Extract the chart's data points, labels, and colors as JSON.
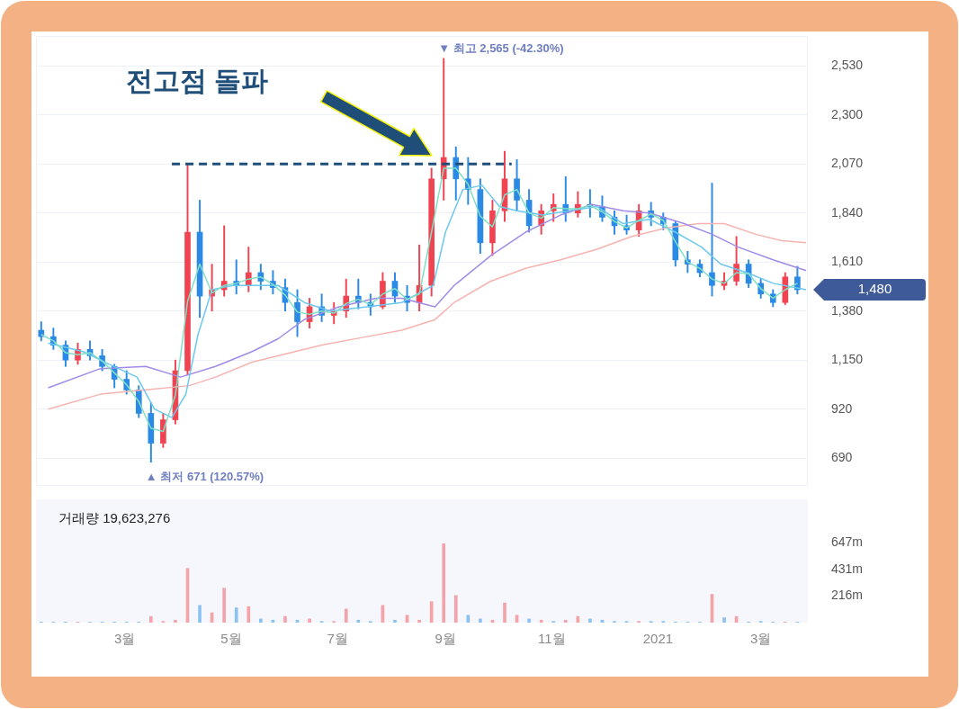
{
  "chart_data": [
    {
      "type": "candlestick",
      "x": [
        "2020-01-13",
        "2020-01-20",
        "2020-01-27",
        "2020-02-03",
        "2020-02-10",
        "2020-02-17",
        "2020-02-24",
        "2020-03-02",
        "2020-03-09",
        "2020-03-16",
        "2020-03-23",
        "2020-03-30",
        "2020-04-06",
        "2020-04-13",
        "2020-04-20",
        "2020-04-27",
        "2020-05-04",
        "2020-05-11",
        "2020-05-18",
        "2020-05-25",
        "2020-06-01",
        "2020-06-08",
        "2020-06-15",
        "2020-06-22",
        "2020-06-29",
        "2020-07-06",
        "2020-07-13",
        "2020-07-20",
        "2020-07-27",
        "2020-08-03",
        "2020-08-10",
        "2020-08-17",
        "2020-08-24",
        "2020-08-31",
        "2020-09-07",
        "2020-09-14",
        "2020-09-21",
        "2020-09-28",
        "2020-10-05",
        "2020-10-12",
        "2020-10-19",
        "2020-10-26",
        "2020-11-02",
        "2020-11-09",
        "2020-11-16",
        "2020-11-23",
        "2020-11-30",
        "2020-12-07",
        "2020-12-14",
        "2020-12-21",
        "2020-12-28",
        "2021-01-04",
        "2021-01-11",
        "2021-01-18",
        "2021-01-25",
        "2021-02-01",
        "2021-02-08",
        "2021-02-15",
        "2021-02-22",
        "2021-03-01",
        "2021-03-08",
        "2021-03-15",
        "2021-03-22"
      ],
      "ohlc": [
        [
          1290,
          1330,
          1240,
          1260
        ],
        [
          1260,
          1300,
          1200,
          1220
        ],
        [
          1220,
          1240,
          1120,
          1150
        ],
        [
          1150,
          1230,
          1130,
          1200
        ],
        [
          1200,
          1240,
          1150,
          1170
        ],
        [
          1170,
          1200,
          1100,
          1120
        ],
        [
          1120,
          1130,
          1020,
          1060
        ],
        [
          1060,
          1100,
          990,
          1010
        ],
        [
          1010,
          1030,
          880,
          900
        ],
        [
          900,
          950,
          671,
          760
        ],
        [
          760,
          900,
          740,
          870
        ],
        [
          870,
          1150,
          850,
          1100
        ],
        [
          1100,
          2070,
          1080,
          1750
        ],
        [
          1750,
          1900,
          1350,
          1450
        ],
        [
          1450,
          1600,
          1380,
          1480
        ],
        [
          1480,
          1780,
          1450,
          1520
        ],
        [
          1520,
          1620,
          1460,
          1500
        ],
        [
          1500,
          1680,
          1470,
          1560
        ],
        [
          1560,
          1600,
          1480,
          1520
        ],
        [
          1520,
          1570,
          1460,
          1490
        ],
        [
          1490,
          1530,
          1380,
          1420
        ],
        [
          1420,
          1480,
          1260,
          1330
        ],
        [
          1330,
          1440,
          1300,
          1400
        ],
        [
          1400,
          1460,
          1330,
          1360
        ],
        [
          1360,
          1420,
          1320,
          1380
        ],
        [
          1380,
          1530,
          1350,
          1450
        ],
        [
          1450,
          1530,
          1390,
          1420
        ],
        [
          1420,
          1460,
          1360,
          1400
        ],
        [
          1400,
          1560,
          1390,
          1520
        ],
        [
          1520,
          1560,
          1420,
          1450
        ],
        [
          1450,
          1500,
          1380,
          1420
        ],
        [
          1420,
          1690,
          1380,
          1500
        ],
        [
          1500,
          2050,
          1450,
          2000
        ],
        [
          2000,
          2565,
          1900,
          2100
        ],
        [
          2100,
          2150,
          1900,
          2000
        ],
        [
          2000,
          2100,
          1880,
          1950
        ],
        [
          1950,
          2000,
          1650,
          1700
        ],
        [
          1700,
          1900,
          1640,
          1850
        ],
        [
          1850,
          2130,
          1800,
          2000
        ],
        [
          2000,
          2090,
          1850,
          1900
        ],
        [
          1900,
          1950,
          1750,
          1780
        ],
        [
          1780,
          1880,
          1740,
          1850
        ],
        [
          1850,
          1930,
          1800,
          1880
        ],
        [
          1880,
          2010,
          1800,
          1840
        ],
        [
          1840,
          1940,
          1820,
          1880
        ],
        [
          1880,
          1950,
          1820,
          1870
        ],
        [
          1870,
          1920,
          1800,
          1820
        ],
        [
          1820,
          1850,
          1740,
          1780
        ],
        [
          1780,
          1830,
          1740,
          1760
        ],
        [
          1760,
          1880,
          1730,
          1850
        ],
        [
          1850,
          1890,
          1780,
          1820
        ],
        [
          1820,
          1840,
          1760,
          1790
        ],
        [
          1790,
          1800,
          1590,
          1620
        ],
        [
          1620,
          1660,
          1560,
          1600
        ],
        [
          1600,
          1620,
          1540,
          1560
        ],
        [
          1560,
          1980,
          1450,
          1500
        ],
        [
          1500,
          1560,
          1480,
          1520
        ],
        [
          1520,
          1730,
          1500,
          1600
        ],
        [
          1600,
          1620,
          1490,
          1510
        ],
        [
          1510,
          1530,
          1440,
          1460
        ],
        [
          1460,
          1480,
          1400,
          1420
        ],
        [
          1420,
          1560,
          1410,
          1540
        ],
        [
          1540,
          1590,
          1460,
          1480
        ]
      ],
      "colors": [
        "#2b8ae6",
        "#2b8ae6",
        "#2b8ae6",
        "#f04452",
        "#2b8ae6",
        "#2b8ae6",
        "#2b8ae6",
        "#2b8ae6",
        "#2b8ae6",
        "#2b8ae6",
        "#f04452",
        "#f04452",
        "#f04452",
        "#2b8ae6",
        "#f04452",
        "#f04452",
        "#2b8ae6",
        "#f04452",
        "#2b8ae6",
        "#2b8ae6",
        "#2b8ae6",
        "#2b8ae6",
        "#f04452",
        "#2b8ae6",
        "#f04452",
        "#f04452",
        "#2b8ae6",
        "#2b8ae6",
        "#f04452",
        "#2b8ae6",
        "#2b8ae6",
        "#f04452",
        "#f04452",
        "#f04452",
        "#2b8ae6",
        "#2b8ae6",
        "#2b8ae6",
        "#f04452",
        "#f04452",
        "#2b8ae6",
        "#2b8ae6",
        "#f04452",
        "#f04452",
        "#2b8ae6",
        "#f04452",
        "#2b8ae6",
        "#2b8ae6",
        "#2b8ae6",
        "#2b8ae6",
        "#f04452",
        "#2b8ae6",
        "#2b8ae6",
        "#2b8ae6",
        "#2b8ae6",
        "#2b8ae6",
        "#2b8ae6",
        "#f04452",
        "#f04452",
        "#2b8ae6",
        "#2b8ae6",
        "#2b8ae6",
        "#f04452",
        "#2b8ae6"
      ],
      "series": [
        {
          "type": "line",
          "color": "#7fe0c4",
          "values": [
            1270,
            1240,
            1185,
            1175,
            1185,
            1145,
            1090,
            1035,
            955,
            830,
            815,
            985,
            1425,
            1600,
            1465,
            1500,
            1510,
            1530,
            1540,
            1505,
            1455,
            1375,
            1365,
            1380,
            1370,
            1415,
            1435,
            1410,
            1460,
            1485,
            1435,
            1460,
            1750,
            2050,
            2050,
            1975,
            1825,
            1775,
            1925,
            1950,
            1840,
            1815,
            1865,
            1860,
            1860,
            1875,
            1845,
            1800,
            1770,
            1805,
            1835,
            1805,
            1705,
            1610,
            1580,
            1530,
            1510,
            1560,
            1555,
            1485,
            1440,
            1480,
            1510
          ]
        },
        {
          "type": "line",
          "color": "#6cc8ef",
          "x": [
            "2020-01-17",
            "2020-02-06",
            "2020-02-21",
            "2020-03-08",
            "2020-03-18",
            "2020-03-28",
            "2020-04-05",
            "2020-04-12",
            "2020-04-20",
            "2020-05-02",
            "2020-05-28",
            "2020-06-12",
            "2020-06-27",
            "2020-07-18",
            "2020-08-07",
            "2020-08-25",
            "2020-09-01",
            "2020-09-11",
            "2020-09-22",
            "2020-10-02",
            "2020-10-12",
            "2020-10-27",
            "2020-11-11",
            "2020-11-27",
            "2020-12-12",
            "2020-12-27",
            "2021-01-11",
            "2021-01-26",
            "2021-02-06",
            "2021-02-21",
            "2021-03-08",
            "2021-03-27"
          ],
          "values": [
            1230,
            1190,
            1130,
            1070,
            920,
            880,
            990,
            1270,
            1480,
            1500,
            1500,
            1420,
            1380,
            1400,
            1420,
            1500,
            1750,
            1950,
            1970,
            1870,
            1850,
            1830,
            1850,
            1870,
            1790,
            1810,
            1750,
            1680,
            1600,
            1560,
            1510,
            1480
          ]
        },
        {
          "type": "line",
          "color": "#a08ce8",
          "x": [
            "2020-01-17",
            "2020-02-16",
            "2020-03-13",
            "2020-04-02",
            "2020-04-22",
            "2020-05-13",
            "2020-05-28",
            "2020-06-12",
            "2020-07-02",
            "2020-07-23",
            "2020-08-07",
            "2020-08-26",
            "2020-09-06",
            "2020-09-27",
            "2020-10-17",
            "2020-11-06",
            "2020-11-24",
            "2020-12-12",
            "2020-12-27",
            "2021-01-16",
            "2021-02-01",
            "2021-02-16",
            "2021-03-08",
            "2021-03-27"
          ],
          "values": [
            1020,
            1110,
            1120,
            1070,
            1120,
            1190,
            1250,
            1340,
            1400,
            1440,
            1440,
            1400,
            1500,
            1640,
            1750,
            1830,
            1880,
            1850,
            1840,
            1790,
            1740,
            1680,
            1620,
            1570
          ]
        },
        {
          "type": "line",
          "color": "#f7b3b0",
          "x": [
            "2020-01-17",
            "2020-02-16",
            "2020-03-13",
            "2020-04-07",
            "2020-04-22",
            "2020-05-13",
            "2020-06-02",
            "2020-06-22",
            "2020-07-18",
            "2020-08-07",
            "2020-08-26",
            "2020-09-06",
            "2020-09-27",
            "2020-10-17",
            "2020-11-06",
            "2020-11-27",
            "2020-12-17",
            "2021-01-06",
            "2021-01-24",
            "2021-02-08",
            "2021-02-26",
            "2021-03-13",
            "2021-03-27"
          ],
          "values": [
            920,
            990,
            1010,
            1030,
            1070,
            1140,
            1180,
            1220,
            1260,
            1290,
            1340,
            1420,
            1520,
            1580,
            1620,
            1670,
            1730,
            1770,
            1790,
            1790,
            1740,
            1710,
            1700
          ]
        },
        {
          "type": "line",
          "color": "#1f4e79",
          "line_style": "dashed",
          "x": [
            "2020-03-28",
            "2020-10-09"
          ],
          "values": [
            2070,
            2070
          ]
        }
      ],
      "xlim": [
        "2020-01-10",
        "2021-03-28"
      ],
      "ylim": [
        560,
        2670
      ],
      "yticks": [
        {
          "value": 690,
          "label": "690"
        },
        {
          "value": 920,
          "label": "920"
        },
        {
          "value": 1150,
          "label": "1,150"
        },
        {
          "value": 1380,
          "label": "1,380"
        },
        {
          "value": 1610,
          "label": "1,610"
        },
        {
          "value": 1840,
          "label": "1,840"
        },
        {
          "value": 2070,
          "label": "2,070"
        },
        {
          "value": 2300,
          "label": "2,300"
        },
        {
          "value": 2530,
          "label": "2,530"
        }
      ],
      "tick_labels": "y",
      "grid": "y",
      "annotations": [
        "전고점 돌파",
        {
          "text": "▼ 최고 2,565 (-42.30%)",
          "x": "2020-08-31",
          "y": 2565
        },
        {
          "text": "▲ 최저 671 (120.57%)",
          "x": "2020-03-16",
          "y": 671
        },
        "1,480"
      ]
    },
    {
      "type": "bar",
      "x": [
        "2020-01-13",
        "2020-01-20",
        "2020-01-27",
        "2020-02-03",
        "2020-02-10",
        "2020-02-17",
        "2020-02-24",
        "2020-03-02",
        "2020-03-09",
        "2020-03-16",
        "2020-03-23",
        "2020-03-30",
        "2020-04-06",
        "2020-04-13",
        "2020-04-20",
        "2020-04-27",
        "2020-05-04",
        "2020-05-11",
        "2020-05-18",
        "2020-05-25",
        "2020-06-01",
        "2020-06-08",
        "2020-06-15",
        "2020-06-22",
        "2020-06-29",
        "2020-07-06",
        "2020-07-13",
        "2020-07-20",
        "2020-07-27",
        "2020-08-03",
        "2020-08-10",
        "2020-08-17",
        "2020-08-24",
        "2020-08-31",
        "2020-09-07",
        "2020-09-14",
        "2020-09-21",
        "2020-09-28",
        "2020-10-05",
        "2020-10-12",
        "2020-10-19",
        "2020-10-26",
        "2020-11-02",
        "2020-11-09",
        "2020-11-16",
        "2020-11-23",
        "2020-11-30",
        "2020-12-07",
        "2020-12-14",
        "2020-12-21",
        "2020-12-28",
        "2021-01-04",
        "2021-01-11",
        "2021-01-18",
        "2021-01-25",
        "2021-02-01",
        "2021-02-08",
        "2021-02-15",
        "2021-02-22",
        "2021-03-01",
        "2021-03-08",
        "2021-03-15",
        "2021-03-22"
      ],
      "values": [
        5,
        5,
        5,
        5,
        5,
        5,
        5,
        5,
        5,
        50,
        10,
        20,
        440,
        140,
        80,
        280,
        120,
        130,
        30,
        20,
        50,
        20,
        30,
        10,
        10,
        110,
        20,
        10,
        140,
        20,
        60,
        20,
        170,
        640,
        220,
        60,
        30,
        20,
        160,
        60,
        30,
        20,
        10,
        20,
        50,
        30,
        20,
        10,
        10,
        10,
        10,
        10,
        5,
        5,
        5,
        230,
        40,
        50,
        5,
        10,
        5,
        5,
        5
      ],
      "colors": [
        "#8cc2f2",
        "#8cc2f2",
        "#8cc2f2",
        "#f4a3a8",
        "#8cc2f2",
        "#8cc2f2",
        "#8cc2f2",
        "#8cc2f2",
        "#8cc2f2",
        "#f4a3a8",
        "#f4a3a8",
        "#f4a3a8",
        "#f4a3a8",
        "#8cc2f2",
        "#f4a3a8",
        "#f4a3a8",
        "#8cc2f2",
        "#f4a3a8",
        "#8cc2f2",
        "#8cc2f2",
        "#f4a3a8",
        "#8cc2f2",
        "#f4a3a8",
        "#8cc2f2",
        "#f4a3a8",
        "#f4a3a8",
        "#8cc2f2",
        "#8cc2f2",
        "#f4a3a8",
        "#8cc2f2",
        "#f4a3a8",
        "#f4a3a8",
        "#f4a3a8",
        "#f4a3a8",
        "#f4a3a8",
        "#8cc2f2",
        "#8cc2f2",
        "#f4a3a8",
        "#f4a3a8",
        "#f4a3a8",
        "#8cc2f2",
        "#f4a3a8",
        "#8cc2f2",
        "#f4a3a8",
        "#f4a3a8",
        "#8cc2f2",
        "#8cc2f2",
        "#8cc2f2",
        "#8cc2f2",
        "#f4a3a8",
        "#8cc2f2",
        "#8cc2f2",
        "#8cc2f2",
        "#8cc2f2",
        "#8cc2f2",
        "#f4a3a8",
        "#8cc2f2",
        "#f4a3a8",
        "#8cc2f2",
        "#8cc2f2",
        "#8cc2f2",
        "#f4a3a8",
        "#8cc2f2"
      ],
      "xlim": [
        "2020-01-10",
        "2021-03-28"
      ],
      "xticks": [
        {
          "value": "2020-03",
          "label": "3월"
        },
        {
          "value": "2020-05",
          "label": "5월"
        },
        {
          "value": "2020-07",
          "label": "7월"
        },
        {
          "value": "2020-09",
          "label": "9월"
        },
        {
          "value": "2020-11",
          "label": "11월"
        },
        {
          "value": "2021",
          "label": "2021"
        },
        {
          "value": "2021-03",
          "label": "3월"
        }
      ],
      "ylim": [
        0,
        1000
      ],
      "yticks": [
        {
          "value": 216,
          "label": "216m"
        },
        {
          "value": 431,
          "label": "431m"
        },
        {
          "value": 647,
          "label": "647m"
        }
      ],
      "annotations": [
        "거래량 19,623,276"
      ]
    }
  ]
}
